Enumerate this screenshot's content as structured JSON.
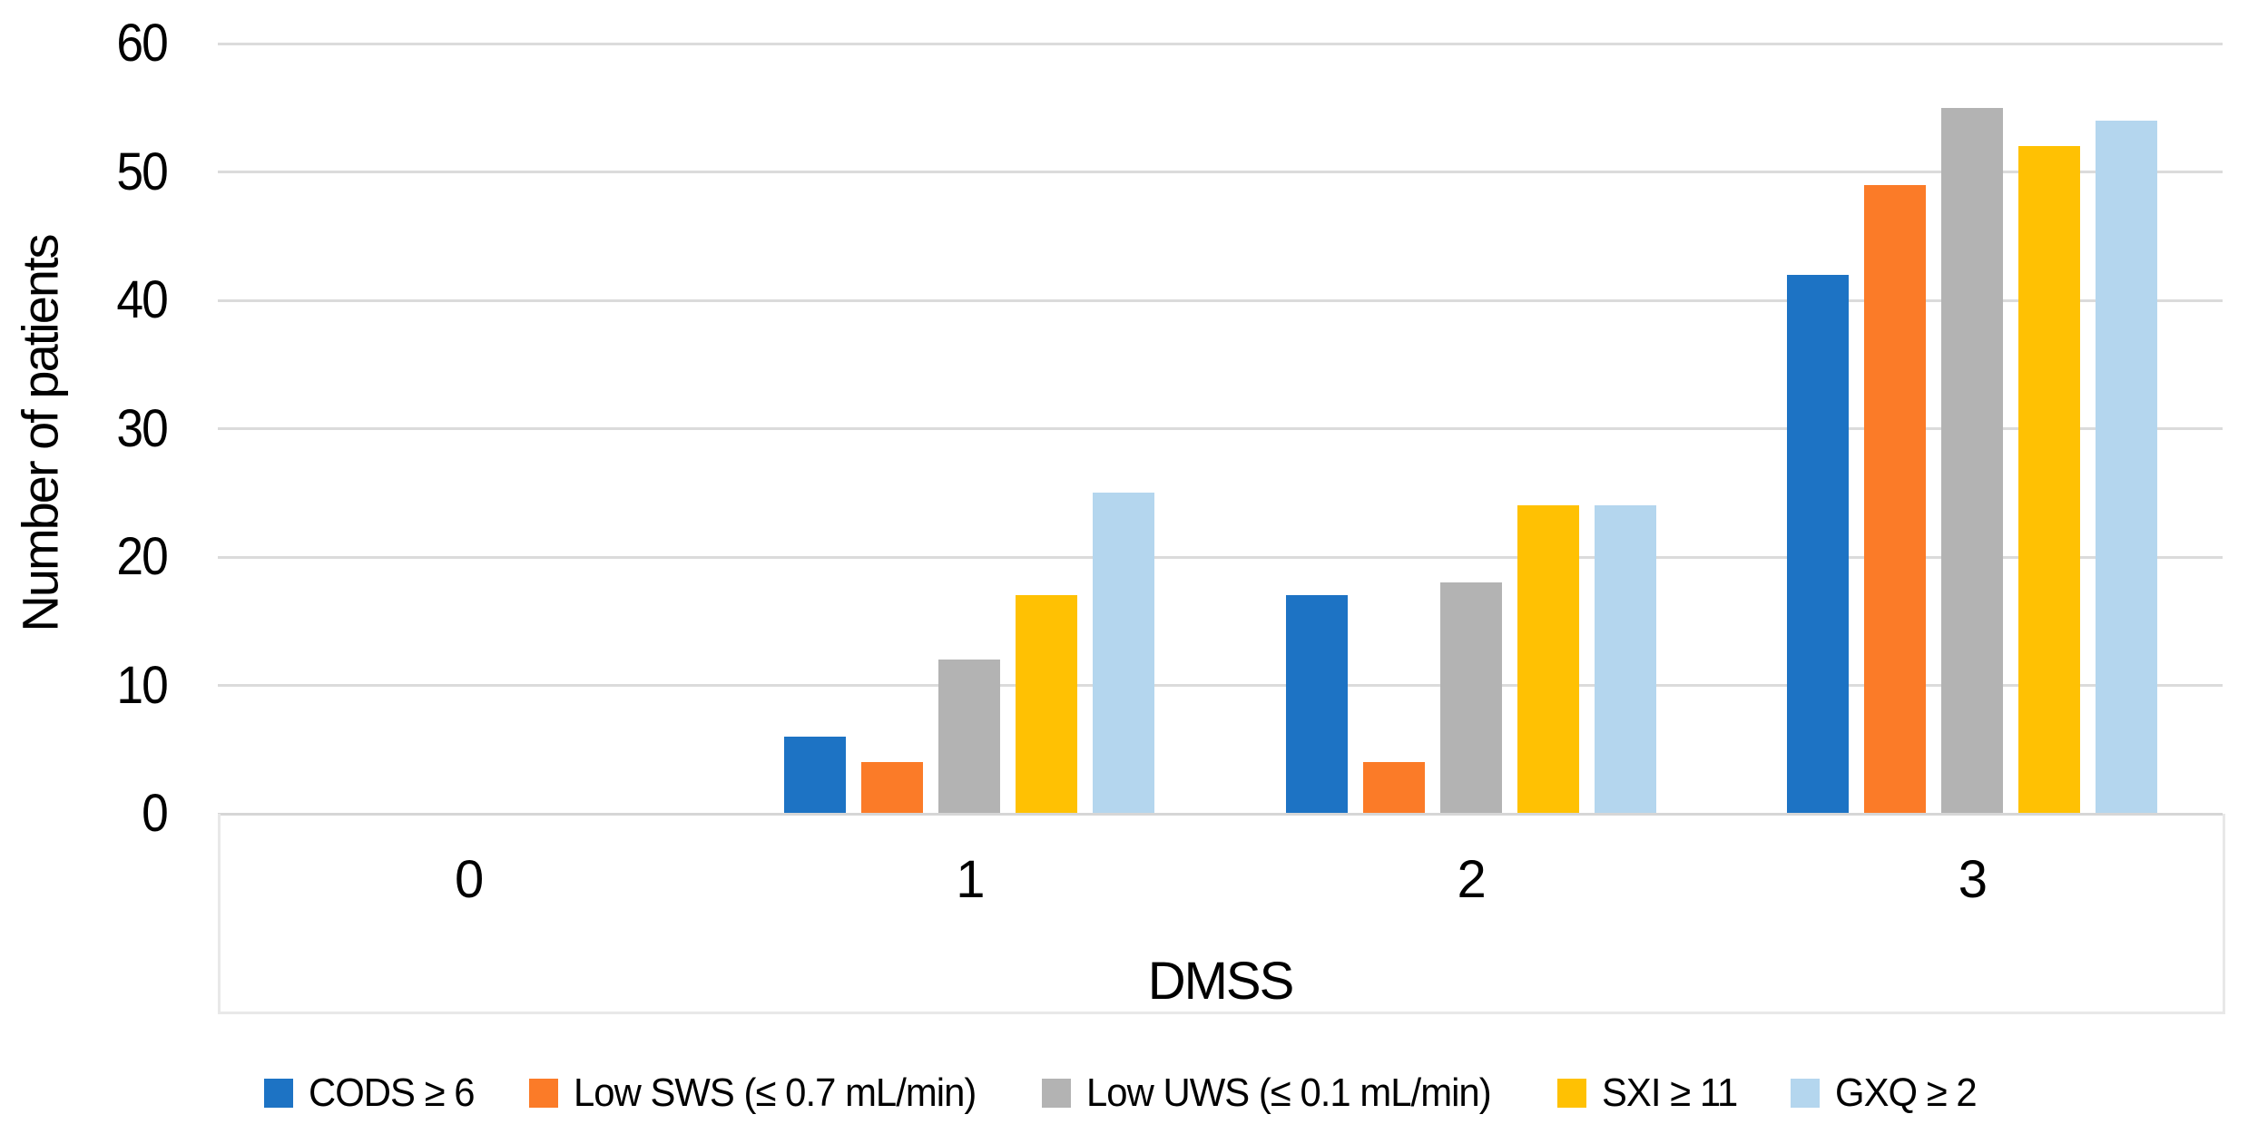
{
  "chart_data": {
    "type": "bar",
    "title": "",
    "xlabel": "DMSS",
    "ylabel": "Number of patients",
    "categories": [
      "0",
      "1",
      "2",
      "3"
    ],
    "series": [
      {
        "name": "CODS ≥ 6",
        "color": "#1d73c4",
        "values": [
          0,
          6,
          17,
          42
        ]
      },
      {
        "name": "Low SWS (≤ 0.7 mL/min)",
        "color": "#fb7b28",
        "values": [
          0,
          4,
          4,
          49
        ]
      },
      {
        "name": "Low UWS (≤ 0.1 mL/min)",
        "color": "#b3b3b3",
        "values": [
          0,
          12,
          18,
          55
        ]
      },
      {
        "name": "SXI ≥ 11",
        "color": "#ffc103",
        "values": [
          0,
          17,
          24,
          52
        ]
      },
      {
        "name": "GXQ ≥ 2",
        "color": "#b4d6ee",
        "values": [
          0,
          25,
          24,
          54
        ]
      }
    ],
    "ylim": [
      0,
      60
    ],
    "yticks": [
      "0",
      "10",
      "20",
      "30",
      "40",
      "50",
      "60"
    ],
    "grid": true,
    "legend_position": "bottom",
    "colors": {
      "gridline": "#dbdbdb",
      "axis_line": "#d6d6d6",
      "frame": "#e8e8e8",
      "text": "#000000",
      "background": "#ffffff"
    }
  }
}
